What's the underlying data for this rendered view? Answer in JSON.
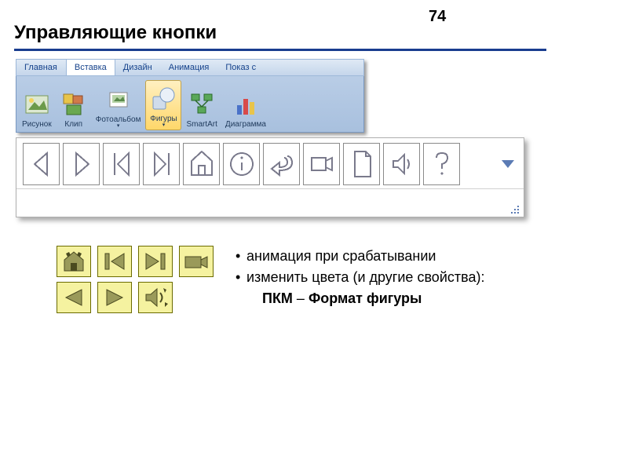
{
  "page_number": "74",
  "title": "Управляющие кнопки",
  "colors": {
    "underline": "#1a3d8f",
    "ribbon_tab_bg": "#dfe9f5",
    "ribbon_body_bg": "#b0c6e2",
    "ribbon_text": "#1e395b",
    "selected_btn_bg": "#ffe48a",
    "shape_stroke": "#7a7a8c",
    "expand_triangle": "#5b7bb4",
    "yellow_btn_bg": "#f5f2a0",
    "yellow_btn_border": "#6b6b00",
    "yellow_icon_fill": "#9a9a5a"
  },
  "ribbon": {
    "tabs": [
      {
        "label": "Главная",
        "active": false
      },
      {
        "label": "Вставка",
        "active": true
      },
      {
        "label": "Дизайн",
        "active": false
      },
      {
        "label": "Анимация",
        "active": false
      },
      {
        "label": "Показ с",
        "active": false
      }
    ],
    "buttons": [
      {
        "name": "picture",
        "label": "Рисунок",
        "has_drop": false,
        "selected": false
      },
      {
        "name": "clip",
        "label": "Клип",
        "has_drop": false,
        "selected": false
      },
      {
        "name": "photoalbum",
        "label": "Фотоальбом",
        "has_drop": true,
        "selected": false
      },
      {
        "name": "shapes",
        "label": "Фигуры",
        "has_drop": true,
        "selected": true
      },
      {
        "name": "smartart",
        "label": "SmartArt",
        "has_drop": false,
        "selected": false
      },
      {
        "name": "chart",
        "label": "Диаграмма",
        "has_drop": false,
        "selected": false
      }
    ]
  },
  "shapes_gallery": {
    "icons": [
      "back",
      "next",
      "begin",
      "end",
      "home",
      "info",
      "return",
      "movie",
      "document",
      "sound",
      "help"
    ]
  },
  "action_buttons": {
    "row1": [
      "home",
      "begin",
      "end",
      "movie"
    ],
    "row2": [
      "back",
      "next",
      "sound"
    ]
  },
  "bullets": {
    "items": [
      "анимация при срабатывании",
      "изменить цвета (и другие свойства):"
    ],
    "indent_prefix": "ПКМ",
    "indent_sep": " – ",
    "indent_bold": "Формат фигуры"
  }
}
